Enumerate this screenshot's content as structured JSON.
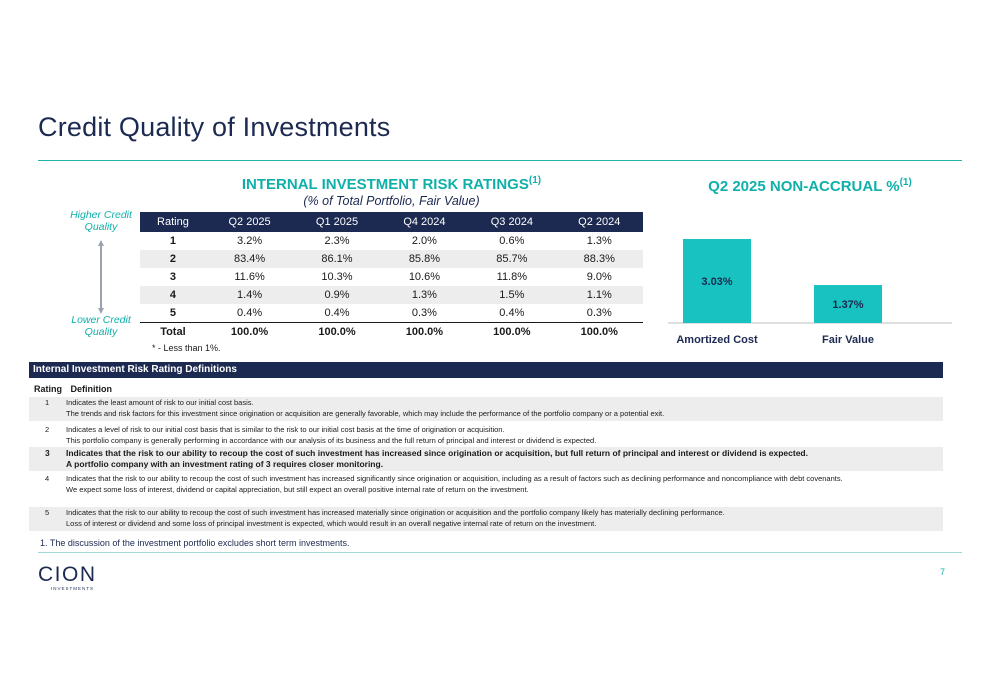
{
  "page": {
    "title": "Credit Quality of Investments",
    "page_number": "7",
    "footnote": "1.    The discussion of the investment portfolio excludes short term investments."
  },
  "colors": {
    "navy": "#1c2951",
    "teal": "#10b0aa",
    "bar_fill": "#18c2c0"
  },
  "ratings_section": {
    "title": "INTERNAL INVESTMENT RISK RATINGS",
    "title_sup": "(1)",
    "subtitle": "(% of Total Portfolio, Fair Value)",
    "higher_label": "Higher Credit Quality",
    "lower_label": "Lower Credit Quality",
    "star_note": "* - Less than 1%.",
    "headers": [
      "Rating",
      "Q2 2025",
      "Q1 2025",
      "Q4 2024",
      "Q3 2024",
      "Q2 2024"
    ],
    "rows": [
      [
        "1",
        "3.2%",
        "2.3%",
        "2.0%",
        "0.6%",
        "1.3%"
      ],
      [
        "2",
        "83.4%",
        "86.1%",
        "85.8%",
        "85.7%",
        "88.3%"
      ],
      [
        "3",
        "11.6%",
        "10.3%",
        "10.6%",
        "11.8%",
        "9.0%"
      ],
      [
        "4",
        "1.4%",
        "0.9%",
        "1.3%",
        "1.5%",
        "1.1%"
      ],
      [
        "5",
        "0.4%",
        "0.4%",
        "0.3%",
        "0.4%",
        "0.3%"
      ]
    ],
    "total": [
      "Total",
      "100.0%",
      "100.0%",
      "100.0%",
      "100.0%",
      "100.0%"
    ]
  },
  "chart_data": {
    "type": "bar",
    "title": "Q2 2025 NON-ACCRUAL %",
    "title_sup": "(1)",
    "categories": [
      "Amortized Cost",
      "Fair Value"
    ],
    "values": [
      3.03,
      1.37
    ],
    "value_labels": [
      "3.03%",
      "1.37%"
    ],
    "ylim": [
      0,
      3.03
    ]
  },
  "definitions": {
    "header": "Internal Investment Risk Rating Definitions",
    "col_rating": "Rating",
    "col_definition": "Definition",
    "items": [
      {
        "num": "1",
        "lines": [
          "Indicates the least amount of risk to our initial cost basis.",
          "The trends and risk factors for this investment since origination or acquisition are generally favorable, which may include the performance of the portfolio company or a potential exit."
        ]
      },
      {
        "num": "2",
        "lines": [
          "Indicates a level of risk to our initial cost basis that is similar to the risk to our initial cost basis at the time of origination or acquisition.",
          "This portfolio company is generally performing in accordance with our analysis of its business and the full return of principal and interest or dividend is expected."
        ]
      },
      {
        "num": "3",
        "lines": [
          "Indicates that the risk to our ability to recoup the cost of such investment has increased since origination or acquisition, but full return of principal and interest or dividend is expected.",
          "A portfolio company with an investment rating of 3 requires closer monitoring."
        ]
      },
      {
        "num": "4",
        "lines": [
          "Indicates that the risk to our ability to recoup the cost of such investment has increased significantly since origination or acquisition, including as a result of factors such as declining performance and noncompliance with debt covenants.",
          "We expect some loss of interest, dividend or capital appreciation, but still expect an overall positive internal rate of return on the investment."
        ]
      },
      {
        "num": "5",
        "lines": [
          "Indicates that the risk to our ability to recoup the cost of such investment has increased materially since origination or acquisition and the portfolio company likely has materially declining performance.",
          "Loss of interest or dividend and some loss of principal investment is expected, which would result in an overall negative internal rate of return on the investment."
        ]
      }
    ]
  },
  "logo": {
    "text": "CION",
    "subtext": "INVESTMENTS"
  }
}
